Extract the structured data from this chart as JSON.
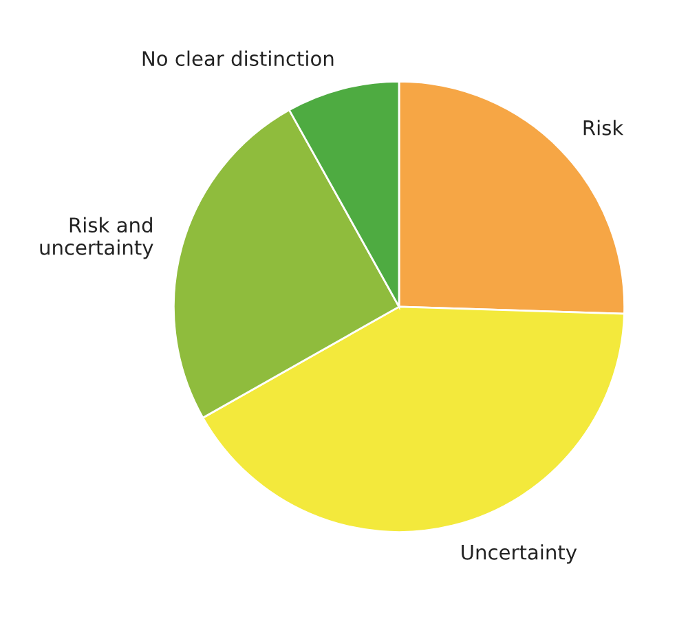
{
  "chart_data": {
    "type": "pie",
    "categories": [
      "Risk",
      "Uncertainty",
      "Risk and\nuncertainty",
      "No clear distinction"
    ],
    "values": [
      25.5,
      41.3,
      25.1,
      8.1
    ],
    "colors": [
      "#f6a645",
      "#f3e93c",
      "#8fbc3d",
      "#4eab41"
    ]
  }
}
